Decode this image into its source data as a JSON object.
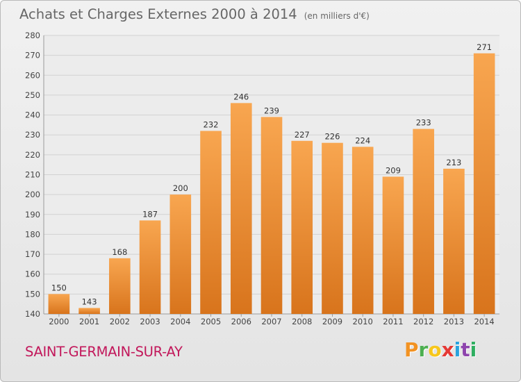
{
  "header": {
    "title": "Achats et Charges Externes 2000 à 2014",
    "unit": "(en milliers d'€)"
  },
  "footer": {
    "place": "SAINT-GERMAIN-SUR-AY",
    "logo_letters": [
      "P",
      "r",
      "o",
      "x",
      "i",
      "t",
      "i"
    ],
    "logo_colors": [
      "#f29222",
      "#4caf50",
      "#f7c71b",
      "#e53935",
      "#29a3de",
      "#8e44ad",
      "#2eae60"
    ]
  },
  "colors": {
    "bar_top": "#f8a650",
    "bar_bottom": "#d8741c",
    "grid": "#d2d2d2",
    "axis_text": "#444444",
    "label_text": "#333333"
  },
  "chart_data": {
    "type": "bar",
    "categories": [
      "2000",
      "2001",
      "2002",
      "2003",
      "2004",
      "2005",
      "2006",
      "2007",
      "2008",
      "2009",
      "2010",
      "2011",
      "2012",
      "2013",
      "2014"
    ],
    "values": [
      150,
      143,
      168,
      187,
      200,
      232,
      246,
      239,
      227,
      226,
      224,
      209,
      233,
      213,
      271
    ],
    "ylim": [
      140,
      280
    ],
    "yticks": [
      140,
      150,
      160,
      170,
      180,
      190,
      200,
      210,
      220,
      230,
      240,
      250,
      260,
      270,
      280
    ],
    "grid": true,
    "data_labels": true
  }
}
